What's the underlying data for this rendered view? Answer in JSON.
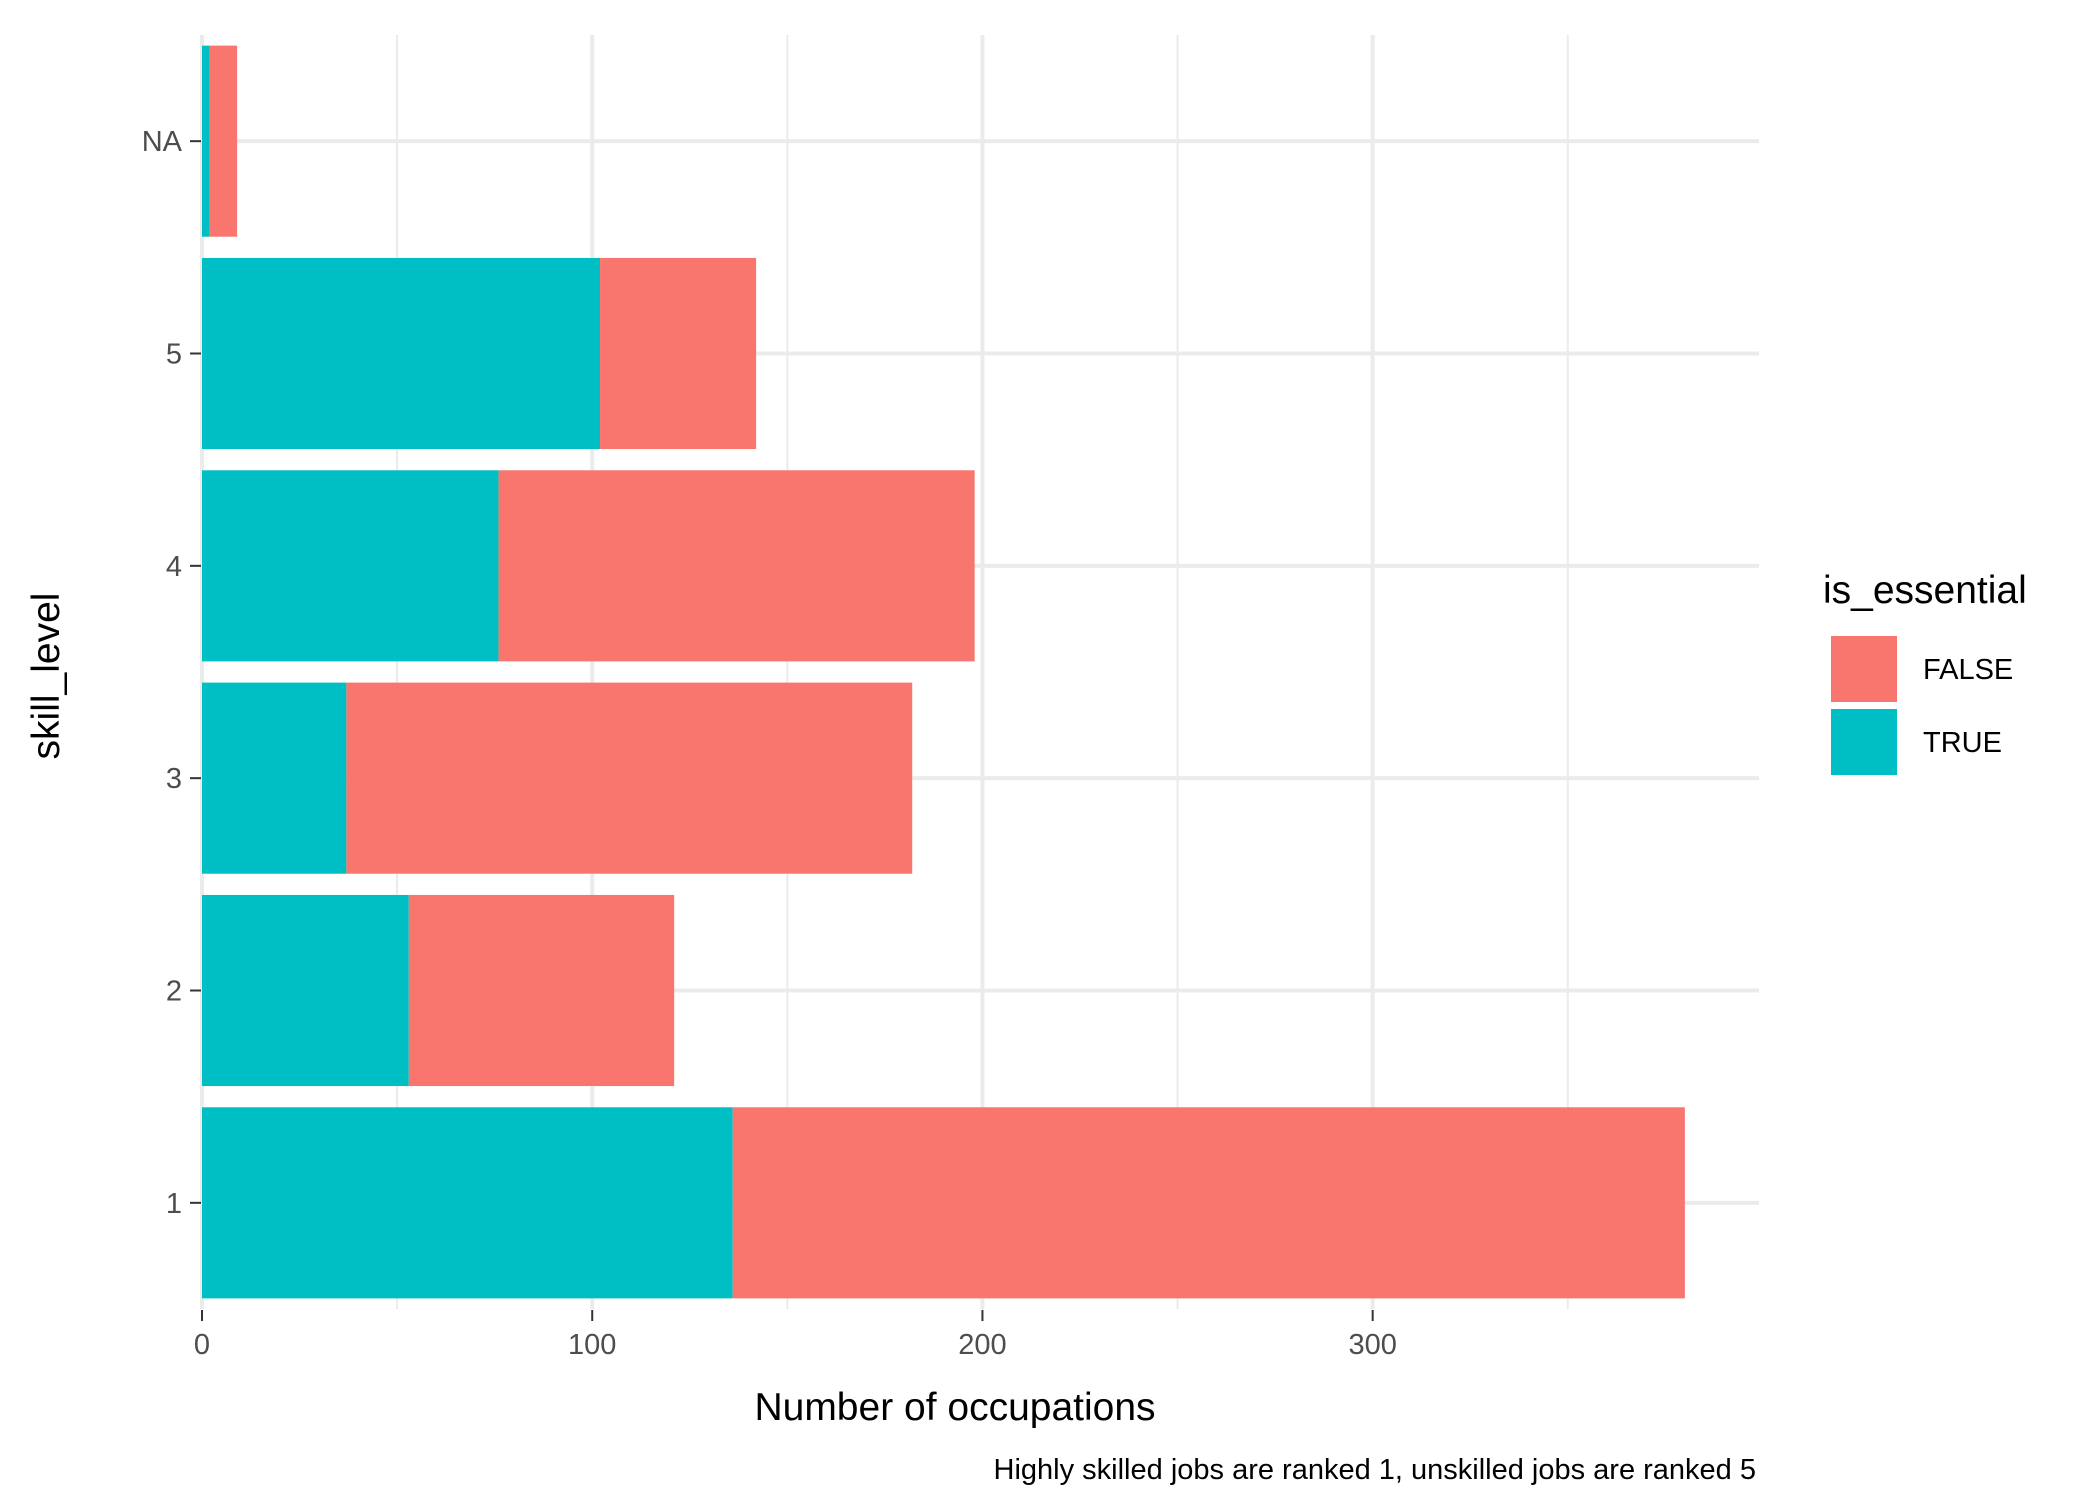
{
  "chart_data": {
    "type": "bar",
    "orientation": "horizontal",
    "stacked": true,
    "categories": [
      "1",
      "2",
      "3",
      "4",
      "5",
      "NA"
    ],
    "series": [
      {
        "name": "FALSE",
        "color": "#F8766D",
        "values": [
          244,
          68,
          145,
          122,
          40,
          7
        ]
      },
      {
        "name": "TRUE",
        "color": "#00BFC4",
        "values": [
          136,
          53,
          37,
          76,
          102,
          2
        ]
      }
    ],
    "xlabel": "Number of occupations",
    "ylabel": "skill_level",
    "caption": "Highly skilled jobs are ranked 1, unskilled jobs are ranked 5",
    "xlim": [
      0,
      399
    ],
    "x_ticks": [
      0,
      100,
      200,
      300
    ],
    "x_tick_labels": [
      "0",
      "100",
      "200",
      "300"
    ],
    "legend": {
      "title": "is_essential",
      "position": "right",
      "entries": [
        "FALSE",
        "TRUE"
      ]
    },
    "grid": true
  }
}
